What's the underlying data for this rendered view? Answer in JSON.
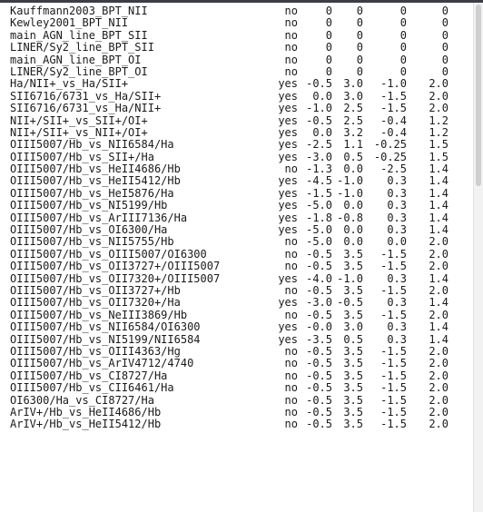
{
  "rows": [
    [
      "Kauffmann2003_BPT_NII",
      "no",
      "0",
      "0",
      "0",
      "0"
    ],
    [
      "Kewley2001_BPT_NII",
      "no",
      "0",
      "0",
      "0",
      "0"
    ],
    [
      "main_AGN_line_BPT_SII",
      "no",
      "0",
      "0",
      "0",
      "0"
    ],
    [
      "LINER/Sy2_line_BPT_SII",
      "no",
      "0",
      "0",
      "0",
      "0"
    ],
    [
      "main_AGN_line_BPT_OI",
      "no",
      "0",
      "0",
      "0",
      "0"
    ],
    [
      "LINER/Sy2_line_BPT_OI",
      "no",
      "0",
      "0",
      "0",
      "0"
    ],
    [
      "Ha/NII+_vs_Ha/SII+",
      "yes",
      "-0.5",
      "3.0",
      "-1.0",
      "2.0"
    ],
    [
      "SII6716/6731_vs_Ha/SII+",
      "yes",
      "0.0",
      "3.0",
      "-1.5",
      "2.0"
    ],
    [
      "SII6716/6731_vs_Ha/NII+",
      "yes",
      "-1.0",
      "2.5",
      "-1.5",
      "2.0"
    ],
    [
      "NII+/SII+_vs_SII+/OI+",
      "yes",
      "-0.5",
      "2.5",
      "-0.4",
      "1.2"
    ],
    [
      "NII+/SII+_vs_NII+/OI+",
      "yes",
      "0.0",
      "3.2",
      "-0.4",
      "1.2"
    ],
    [
      "OIII5007/Hb_vs_NII6584/Ha",
      "yes",
      "-2.5",
      "1.1",
      "-0.25",
      "1.5"
    ],
    [
      "OIII5007/Hb_vs_SII+/Ha",
      "yes",
      "-3.0",
      "0.5",
      "-0.25",
      "1.5"
    ],
    [
      "OIII5007/Hb_vs_HeII4686/Hb",
      "no",
      "-1.3",
      "0.0",
      "-2.5",
      "1.4"
    ],
    [
      "OIII5007/Hb_vs_HeII5412/Hb",
      "yes",
      "-4.5",
      "-1.0",
      "0.3",
      "1.4"
    ],
    [
      "OIII5007/Hb_vs_HeI5876/Ha",
      "yes",
      "-1.5",
      "-1.0",
      "0.3",
      "1.4"
    ],
    [
      "OIII5007/Hb_vs_NI5199/Hb",
      "yes",
      "-5.0",
      "0.0",
      "0.3",
      "1.4"
    ],
    [
      "OIII5007/Hb_vs_ArIII7136/Ha",
      "yes",
      "-1.8",
      "-0.8",
      "0.3",
      "1.4"
    ],
    [
      "OIII5007/Hb_vs_OI6300/Ha",
      "yes",
      "-5.0",
      "0.0",
      "0.3",
      "1.4"
    ],
    [
      "OIII5007/Hb_vs_NII5755/Hb",
      "no",
      "-5.0",
      "0.0",
      "0.0",
      "2.0"
    ],
    [
      "OIII5007/Hb_vs_OIII5007/OI6300",
      "no",
      "-0.5",
      "3.5",
      "-1.5",
      "2.0"
    ],
    [
      "OIII5007/Hb_vs_OII3727+/OIII5007",
      "no",
      "-0.5",
      "3.5",
      "-1.5",
      "2.0"
    ],
    [
      "OIII5007/Hb_vs_OII7320+/OIII5007",
      "yes",
      "-4.0",
      "-1.0",
      "0.3",
      "1.4"
    ],
    [
      "OIII5007/Hb_vs_OII3727+/Hb",
      "no",
      "-0.5",
      "3.5",
      "-1.5",
      "2.0"
    ],
    [
      "OIII5007/Hb_vs_OII7320+/Ha",
      "yes",
      "-3.0",
      "-0.5",
      "0.3",
      "1.4"
    ],
    [
      "OIII5007/Hb_vs_NeIII3869/Hb",
      "no",
      "-0.5",
      "3.5",
      "-1.5",
      "2.0"
    ],
    [
      "OIII5007/Hb_vs_NII6584/OI6300",
      "yes",
      "-0.0",
      "3.0",
      "0.3",
      "1.4"
    ],
    [
      "OIII5007/Hb_vs_NI5199/NII6584",
      "yes",
      "-3.5",
      "0.5",
      "0.3",
      "1.4"
    ],
    [
      "OIII5007/Hb_vs_OIII4363/Hg",
      "no",
      "-0.5",
      "3.5",
      "-1.5",
      "2.0"
    ],
    [
      "OIII5007/Hb_vs_ArIV4712/4740",
      "no",
      "-0.5",
      "3.5",
      "-1.5",
      "2.0"
    ],
    [
      "OIII5007/Hb_vs_CI8727/Ha",
      "no",
      "-0.5",
      "3.5",
      "-1.5",
      "2.0"
    ],
    [
      "OIII5007/Hb_vs_CII6461/Ha",
      "no",
      "-0.5",
      "3.5",
      "-1.5",
      "2.0"
    ],
    [
      "OI6300/Ha_vs_CI8727/Ha",
      "no",
      "-0.5",
      "3.5",
      "-1.5",
      "2.0"
    ],
    [
      "ArIV+/Hb_vs_HeII4686/Hb",
      "no",
      "-0.5",
      "3.5",
      "-1.5",
      "2.0"
    ],
    [
      "ArIV+/Hb_vs_HeII5412/Hb",
      "no",
      "-0.5",
      "3.5",
      "-1.5",
      "2.0"
    ]
  ]
}
